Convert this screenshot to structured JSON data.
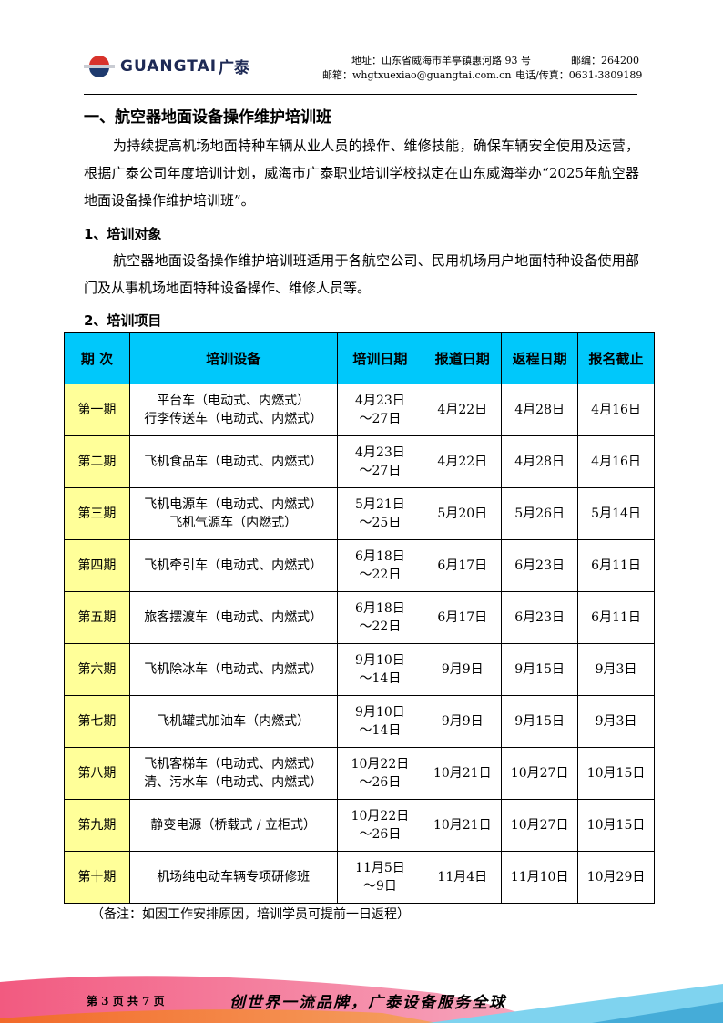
{
  "header": {
    "logo_text": "GUANGTAI",
    "logo_cn": "广泰",
    "address": "地址：山东省威海市羊亭镇惠河路 93 号",
    "postcode": "邮编：264200",
    "email": "邮箱：whgtxuexiao@guangtai.com.cn",
    "phone": "电话/传真：0631-3809189"
  },
  "title": "一、航空器地面设备操作维护培训班",
  "intro": "为持续提高机场地面特种车辆从业人员的操作、维修技能，确保车辆安全使用及运营，根据广泰公司年度培训计划，威海市广泰职业培训学校拟定在山东威海举办“2025年航空器地面设备操作维护培训班”。",
  "section1": {
    "heading": "1、培训对象",
    "text": "航空器地面设备操作维护培训班适用于各航空公司、民用机场用户地面特种设备使用部门及从事机场地面特种设备操作、维修人员等。"
  },
  "section2": {
    "heading": "2、培训项目"
  },
  "table": {
    "headers": [
      "期 次",
      "培训设备",
      "培训日期",
      "报道日期",
      "返程日期",
      "报名截止"
    ],
    "rows": [
      {
        "period": "第一期",
        "equipment": [
          "平台车（电动式、内燃式）",
          "行李传送车（电动式、内燃式）"
        ],
        "train": [
          "4月23日",
          "～27日"
        ],
        "report": "4月22日",
        "return": "4月28日",
        "deadline": "4月16日"
      },
      {
        "period": "第二期",
        "equipment": [
          "飞机食品车（电动式、内燃式）"
        ],
        "train": [
          "4月23日",
          "～27日"
        ],
        "report": "4月22日",
        "return": "4月28日",
        "deadline": "4月16日"
      },
      {
        "period": "第三期",
        "equipment": [
          "飞机电源车（电动式、内燃式）",
          "飞机气源车（内燃式）"
        ],
        "train": [
          "5月21日",
          "～25日"
        ],
        "report": "5月20日",
        "return": "5月26日",
        "deadline": "5月14日"
      },
      {
        "period": "第四期",
        "equipment": [
          "飞机牵引车（电动式、内燃式）"
        ],
        "train": [
          "6月18日",
          "～22日"
        ],
        "report": "6月17日",
        "return": "6月23日",
        "deadline": "6月11日"
      },
      {
        "period": "第五期",
        "equipment": [
          "旅客摆渡车（电动式、内燃式）"
        ],
        "train": [
          "6月18日",
          "～22日"
        ],
        "report": "6月17日",
        "return": "6月23日",
        "deadline": "6月11日"
      },
      {
        "period": "第六期",
        "equipment": [
          "飞机除冰车（电动式、内燃式）"
        ],
        "train": [
          "9月10日",
          "～14日"
        ],
        "report": "9月9日",
        "return": "9月15日",
        "deadline": "9月3日"
      },
      {
        "period": "第七期",
        "equipment": [
          "飞机罐式加油车（内燃式）"
        ],
        "train": [
          "9月10日",
          "～14日"
        ],
        "report": "9月9日",
        "return": "9月15日",
        "deadline": "9月3日"
      },
      {
        "period": "第八期",
        "equipment": [
          "飞机客梯车（电动式、内燃式）",
          "清、污水车（电动式、内燃式）"
        ],
        "train": [
          "10月22日",
          "～26日"
        ],
        "report": "10月21日",
        "return": "10月27日",
        "deadline": "10月15日"
      },
      {
        "period": "第九期",
        "equipment": [
          "静变电源（桥载式 / 立柜式）"
        ],
        "train": [
          "10月22日",
          "～26日"
        ],
        "report": "10月21日",
        "return": "10月27日",
        "deadline": "10月15日"
      },
      {
        "period": "第十期",
        "equipment": [
          "机场纯电动车辆专项研修班"
        ],
        "train": [
          "11月5日",
          "～9日"
        ],
        "report": "11月4日",
        "return": "11月10日",
        "deadline": "10月29日"
      }
    ]
  },
  "note": "（备注：如因工作安排原因，培训学员可提前一日返程）",
  "footer": {
    "page": "第 3 页 共 7 页",
    "slogan": "创世界一流品牌，广泰设备服务全球"
  },
  "colors": {
    "header_bg": "#00c8fb",
    "period_bg": "#ffff99"
  }
}
